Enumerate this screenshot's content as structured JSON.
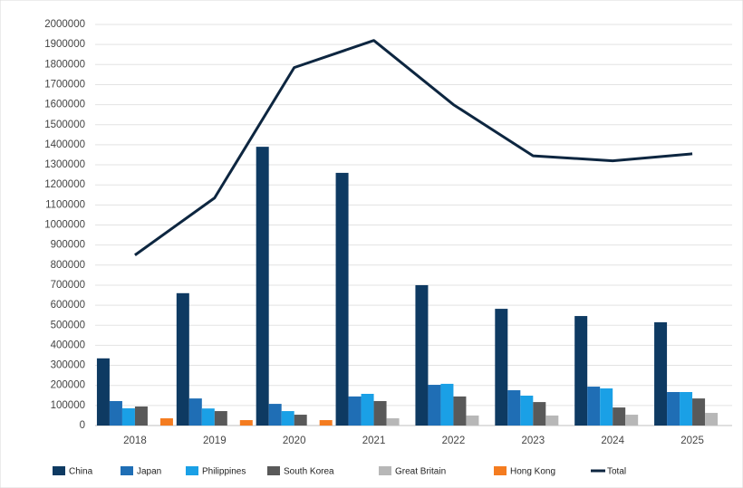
{
  "chart_data": {
    "type": "bar",
    "categories": [
      "2018",
      "2019",
      "2020",
      "2021",
      "2022",
      "2023",
      "2024",
      "2025"
    ],
    "series": [
      {
        "name": "China",
        "color": "#0e3a62",
        "values": [
          335000,
          660000,
          1390000,
          1260000,
          700000,
          582000,
          546000,
          515000
        ]
      },
      {
        "name": "Japan",
        "color": "#1f6eb5",
        "values": [
          122000,
          135000,
          108000,
          145000,
          203000,
          176000,
          194000,
          167000
        ]
      },
      {
        "name": "Philippines",
        "color": "#1aa0e6",
        "values": [
          86000,
          85000,
          72000,
          158000,
          208000,
          149000,
          185000,
          167000
        ]
      },
      {
        "name": "South Korea",
        "color": "#595959",
        "values": [
          95000,
          72000,
          54000,
          122000,
          145000,
          117000,
          90000,
          135000
        ]
      },
      {
        "name": "Great Britain",
        "color": "#b7b7b7",
        "values": [
          null,
          null,
          null,
          36000,
          50000,
          50000,
          54000,
          63000
        ]
      },
      {
        "name": "Hong Kong",
        "color": "#f47c20",
        "values": [
          36000,
          27000,
          27000,
          null,
          null,
          null,
          null,
          null
        ]
      },
      {
        "name": "Total",
        "color": "#0d2640",
        "type": "line",
        "values": [
          850000,
          1135000,
          1785000,
          1920000,
          1600000,
          1345000,
          1320000,
          1355000
        ]
      }
    ],
    "ylim": [
      0,
      2000000
    ],
    "yticks": [
      0,
      100000,
      200000,
      300000,
      400000,
      500000,
      600000,
      700000,
      800000,
      900000,
      1000000,
      1100000,
      1200000,
      1300000,
      1400000,
      1500000,
      1600000,
      1700000,
      1800000,
      1900000,
      2000000
    ],
    "grid": true,
    "legend": "bottom"
  }
}
